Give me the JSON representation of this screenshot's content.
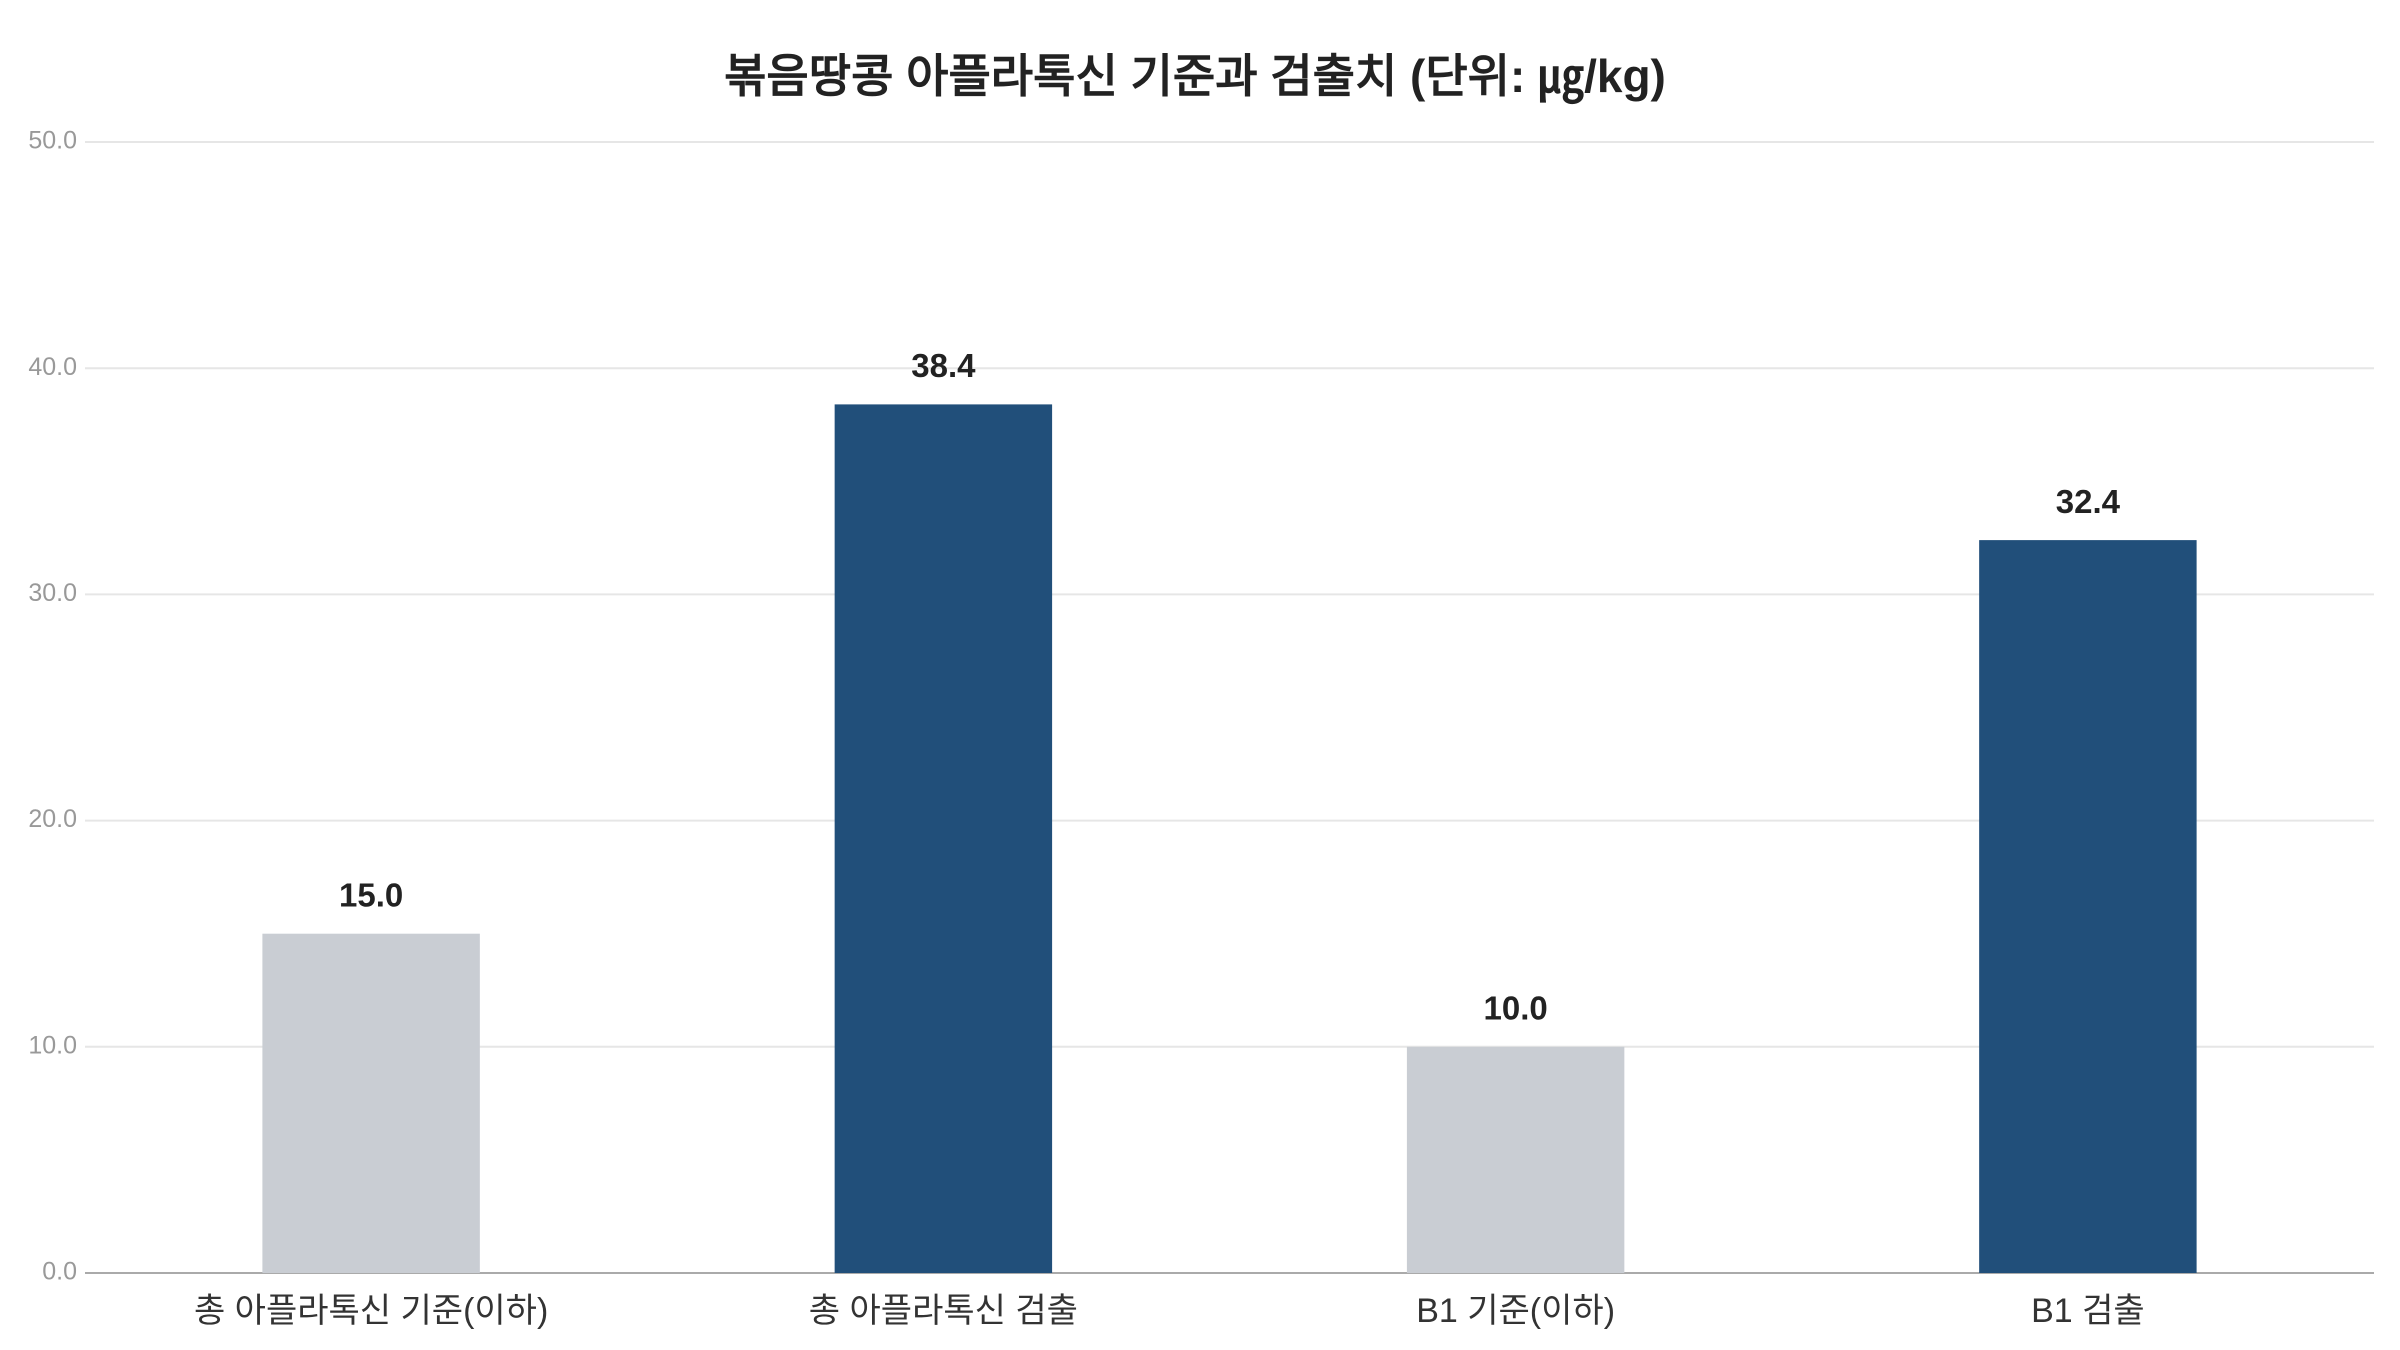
{
  "chart_data": {
    "type": "bar",
    "title": "볶음땅콩 아플라톡신 기준과 검출치 (단위: ㎍/kg)",
    "categories": [
      "총 아플라톡신 기준(이하)",
      "총 아플라톡신 검출",
      "B1 기준(이하)",
      "B1 검출"
    ],
    "values": [
      15.0,
      38.4,
      10.0,
      32.4
    ],
    "value_labels": [
      "15.0",
      "38.4",
      "10.0",
      "32.4"
    ],
    "colors": [
      "#c9cdd3",
      "#214f7a",
      "#c9cdd3",
      "#214f7a"
    ],
    "ylim": [
      0,
      50
    ],
    "yticks": [
      {
        "value": 0,
        "label": "0.0"
      },
      {
        "value": 10,
        "label": "10.0"
      },
      {
        "value": 20,
        "label": "20.0"
      },
      {
        "value": 30,
        "label": "30.0"
      },
      {
        "value": 40,
        "label": "40.0"
      },
      {
        "value": 50,
        "label": "50.0"
      }
    ],
    "grid": true
  }
}
